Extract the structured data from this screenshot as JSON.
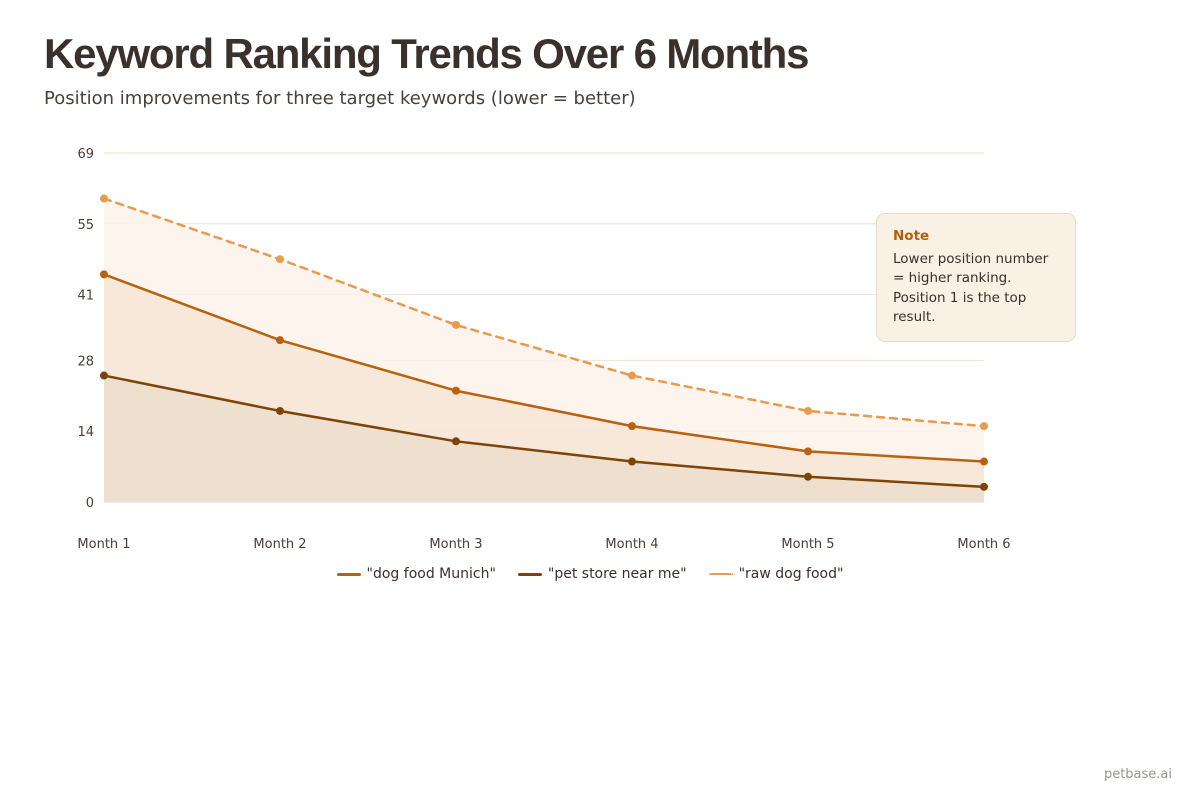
{
  "header": {
    "title": "Keyword Ranking Trends Over 6 Months",
    "subtitle": "Position improvements for three target keywords (lower = better)"
  },
  "note": {
    "title": "Note",
    "text": "Lower position number = higher ranking. Position 1 is the top result."
  },
  "footer": {
    "brand": "petbase.ai"
  },
  "colors": {
    "dog_food_munich": "#b8620f",
    "pet_store_near_me": "#7e4406",
    "raw_dog_food": "#e89a4e",
    "grid": "#ede5d6"
  },
  "chart_data": {
    "type": "area",
    "title": "Keyword Ranking Trends Over 6 Months",
    "subtitle": "Position improvements for three target keywords (lower = better)",
    "xlabel": "",
    "ylabel": "",
    "categories": [
      "Month 1",
      "Month 2",
      "Month 3",
      "Month 4",
      "Month 5",
      "Month 6"
    ],
    "y_ticks": [
      0,
      14,
      28,
      41,
      55,
      69
    ],
    "ylim": [
      0,
      69
    ],
    "grid": true,
    "legend_position": "bottom-center",
    "series": [
      {
        "name": "\"dog food Munich\"",
        "values": [
          45,
          32,
          22,
          15,
          10,
          8
        ],
        "color": "#b8620f",
        "style": "solid"
      },
      {
        "name": "\"pet store near me\"",
        "values": [
          25,
          18,
          12,
          8,
          5,
          3
        ],
        "color": "#7e4406",
        "style": "solid"
      },
      {
        "name": "\"raw dog food\"",
        "values": [
          60,
          48,
          35,
          25,
          18,
          15
        ],
        "color": "#e89a4e",
        "style": "dashed"
      }
    ]
  }
}
